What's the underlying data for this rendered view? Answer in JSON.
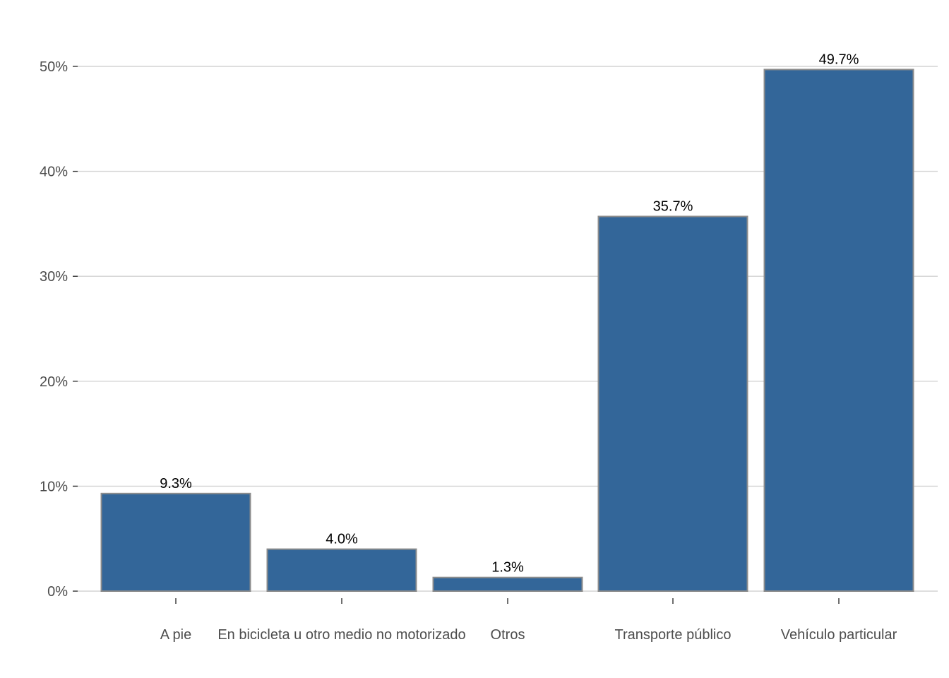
{
  "chart_data": {
    "type": "bar",
    "title": "",
    "xlabel": "",
    "ylabel": "",
    "categories": [
      "A pie",
      "En bicicleta u otro medio no motorizado",
      "Otros",
      "Transporte público",
      "Vehículo particular"
    ],
    "values": [
      9.3,
      4.0,
      1.3,
      35.7,
      49.7
    ],
    "data_labels": [
      "9.3%",
      "4.0%",
      "1.3%",
      "35.7%",
      "49.7%"
    ],
    "ylim": [
      0,
      52
    ],
    "yticks": [
      0,
      10,
      20,
      30,
      40,
      50
    ],
    "ytick_labels": [
      "0%",
      "10%",
      "20%",
      "30%",
      "40%",
      "50%"
    ],
    "grid": true,
    "legend": "none",
    "colors": {
      "bar_fill": "#336699",
      "bar_outline": "#8c8c8c",
      "gridline": "#d3d3d3"
    }
  }
}
